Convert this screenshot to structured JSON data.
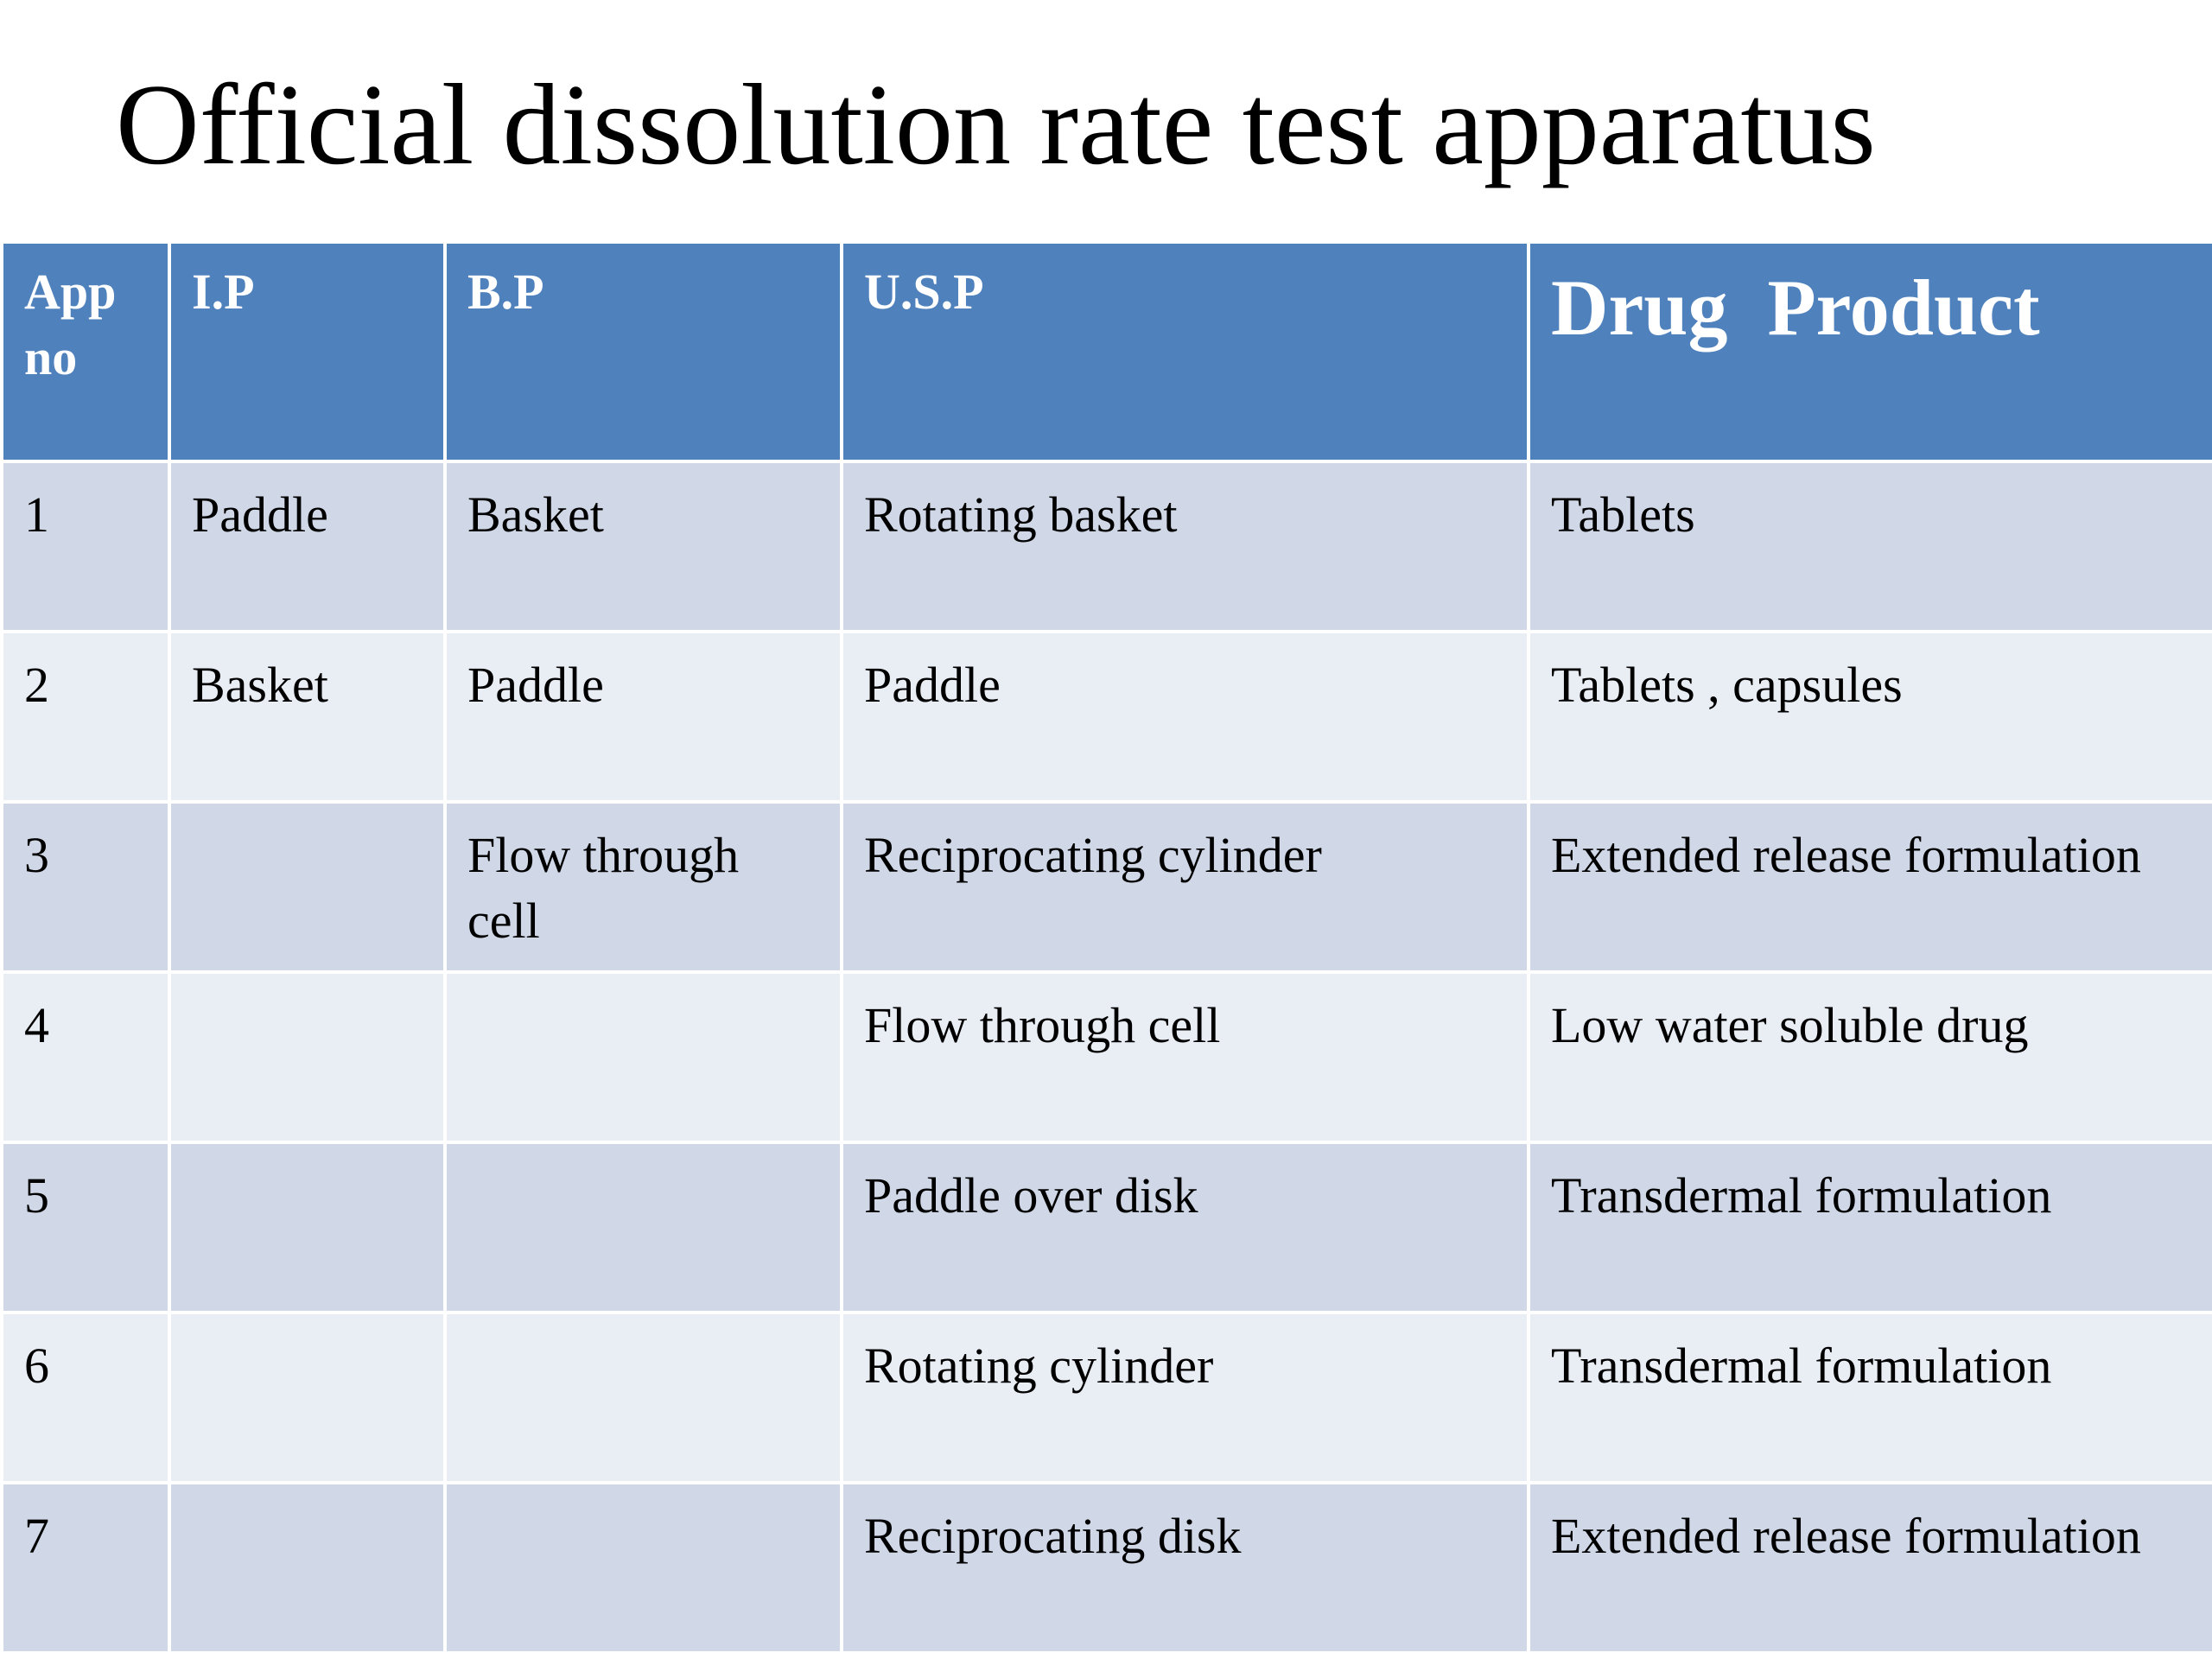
{
  "slide": {
    "title": "Official dissolution rate test apparatus"
  },
  "table": {
    "headers": {
      "app_no": "App no",
      "ip": "I.P",
      "bp": "B.P",
      "usp": "U.S.P",
      "drug_product": "Drug  Product"
    },
    "rows": [
      {
        "app_no": "1",
        "ip": "Paddle",
        "bp": "Basket",
        "usp": "Rotating basket",
        "drug_product": "Tablets"
      },
      {
        "app_no": "2",
        "ip": "Basket",
        "bp": "Paddle",
        "usp": "Paddle",
        "drug_product": "Tablets , capsules"
      },
      {
        "app_no": "3",
        "ip": "",
        "bp": "Flow through cell",
        "usp": "Reciprocating cylinder",
        "drug_product": "Extended release formulation"
      },
      {
        "app_no": "4",
        "ip": "",
        "bp": "",
        "usp": "Flow through cell",
        "drug_product": "Low water soluble drug"
      },
      {
        "app_no": "5",
        "ip": "",
        "bp": "",
        "usp": "Paddle over disk",
        "drug_product": "Transdermal formulation"
      },
      {
        "app_no": "6",
        "ip": "",
        "bp": "",
        "usp": "Rotating cylinder",
        "drug_product": "Transdermal formulation"
      },
      {
        "app_no": "7",
        "ip": "",
        "bp": "",
        "usp": "Reciprocating disk",
        "drug_product": "Extended release formulation"
      }
    ]
  },
  "colors": {
    "header_background": "#4f81bd",
    "header_text": "#ffffff",
    "row_band_dark": "#d0d8e8",
    "row_band_light": "#e9edf4",
    "cell_border": "#ffffff"
  }
}
